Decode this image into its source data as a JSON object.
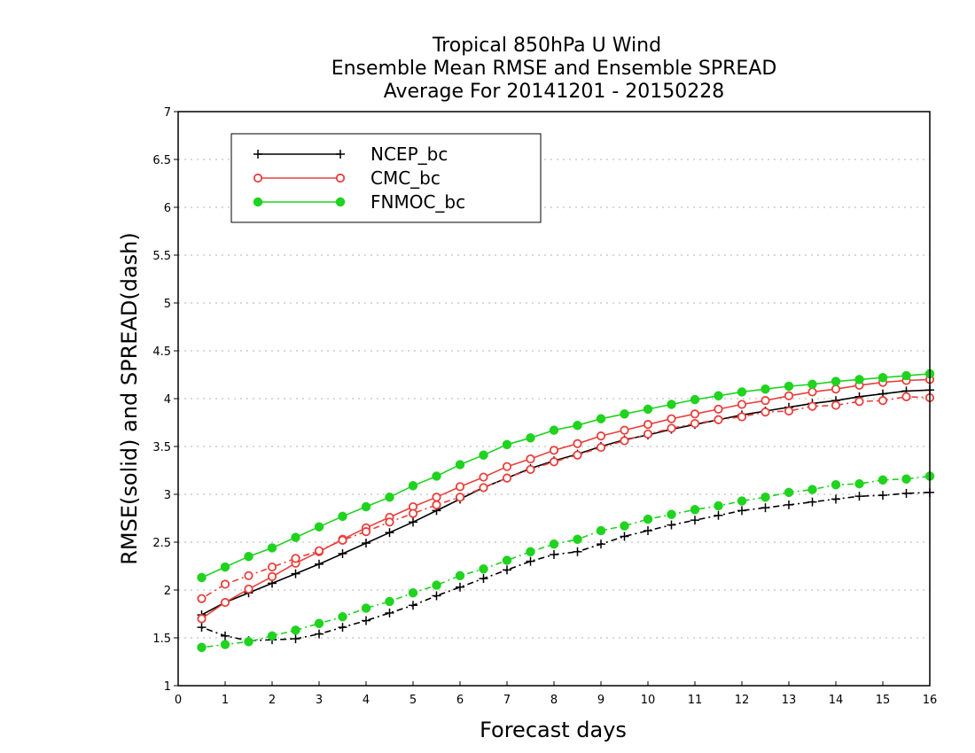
{
  "chart_data": {
    "type": "line",
    "title_lines": [
      "Tropical 850hPa U Wind",
      "Ensemble Mean RMSE and Ensemble SPREAD",
      "Average For 20141201 - 20150228"
    ],
    "xlabel": "Forecast days",
    "ylabel": "RMSE(solid) and SPREAD(dash)",
    "xlim": [
      0,
      16
    ],
    "ylim": [
      1,
      7
    ],
    "xticks": [
      "0",
      "1",
      "2",
      "3",
      "4",
      "5",
      "6",
      "7",
      "8",
      "9",
      "10",
      "11",
      "12",
      "13",
      "14",
      "15",
      "16"
    ],
    "yticks": [
      "1",
      "1.5",
      "2",
      "2.5",
      "3",
      "3.5",
      "4",
      "4.5",
      "5",
      "5.5",
      "6",
      "6.5",
      "7"
    ],
    "grid": true,
    "legend_position": "top-left",
    "x": [
      0.5,
      1,
      1.5,
      2,
      2.5,
      3,
      3.5,
      4,
      4.5,
      5,
      5.5,
      6,
      6.5,
      7,
      7.5,
      8,
      8.5,
      9,
      9.5,
      10,
      10.5,
      11,
      11.5,
      12,
      12.5,
      13,
      13.5,
      14,
      14.5,
      15,
      15.5,
      16
    ],
    "series": [
      {
        "name": "NCEP_bc",
        "color": "#000000",
        "marker": "plus",
        "rmse": [
          1.74,
          1.87,
          1.97,
          2.07,
          2.17,
          2.27,
          2.38,
          2.49,
          2.6,
          2.71,
          2.83,
          2.95,
          3.07,
          3.17,
          3.27,
          3.35,
          3.42,
          3.5,
          3.57,
          3.62,
          3.68,
          3.73,
          3.78,
          3.83,
          3.87,
          3.91,
          3.95,
          3.98,
          4.02,
          4.05,
          4.08,
          4.09
        ],
        "spread": [
          1.61,
          1.52,
          1.47,
          1.48,
          1.49,
          1.54,
          1.61,
          1.68,
          1.76,
          1.84,
          1.94,
          2.03,
          2.12,
          2.21,
          2.3,
          2.37,
          2.4,
          2.48,
          2.56,
          2.62,
          2.68,
          2.73,
          2.78,
          2.83,
          2.86,
          2.89,
          2.92,
          2.95,
          2.98,
          2.99,
          3.01,
          3.02
        ]
      },
      {
        "name": "CMC_bc",
        "color": "#e8403c",
        "marker": "open-circle",
        "rmse": [
          1.7,
          1.87,
          2.01,
          2.14,
          2.28,
          2.4,
          2.53,
          2.65,
          2.76,
          2.87,
          2.97,
          3.08,
          3.18,
          3.29,
          3.37,
          3.46,
          3.53,
          3.61,
          3.67,
          3.73,
          3.79,
          3.84,
          3.89,
          3.94,
          3.98,
          4.03,
          4.07,
          4.1,
          4.14,
          4.17,
          4.19,
          4.2
        ],
        "spread": [
          1.91,
          2.06,
          2.15,
          2.24,
          2.33,
          2.41,
          2.52,
          2.61,
          2.71,
          2.8,
          2.89,
          2.97,
          3.07,
          3.17,
          3.26,
          3.34,
          3.41,
          3.49,
          3.56,
          3.63,
          3.69,
          3.74,
          3.78,
          3.81,
          3.86,
          3.87,
          3.92,
          3.93,
          3.97,
          3.98,
          4.02,
          4.01
        ]
      },
      {
        "name": "FNMOC_bc",
        "color": "#1fd31f",
        "marker": "filled-circle",
        "rmse": [
          2.13,
          2.24,
          2.35,
          2.44,
          2.55,
          2.66,
          2.77,
          2.87,
          2.97,
          3.09,
          3.19,
          3.31,
          3.41,
          3.52,
          3.59,
          3.67,
          3.72,
          3.79,
          3.84,
          3.89,
          3.94,
          3.99,
          4.03,
          4.07,
          4.1,
          4.13,
          4.15,
          4.18,
          4.2,
          4.22,
          4.24,
          4.26
        ],
        "spread": [
          1.4,
          1.43,
          1.46,
          1.52,
          1.58,
          1.65,
          1.72,
          1.81,
          1.88,
          1.97,
          2.05,
          2.15,
          2.22,
          2.31,
          2.4,
          2.48,
          2.53,
          2.62,
          2.67,
          2.74,
          2.79,
          2.84,
          2.88,
          2.93,
          2.97,
          3.02,
          3.05,
          3.1,
          3.11,
          3.15,
          3.16,
          3.19
        ]
      }
    ]
  }
}
